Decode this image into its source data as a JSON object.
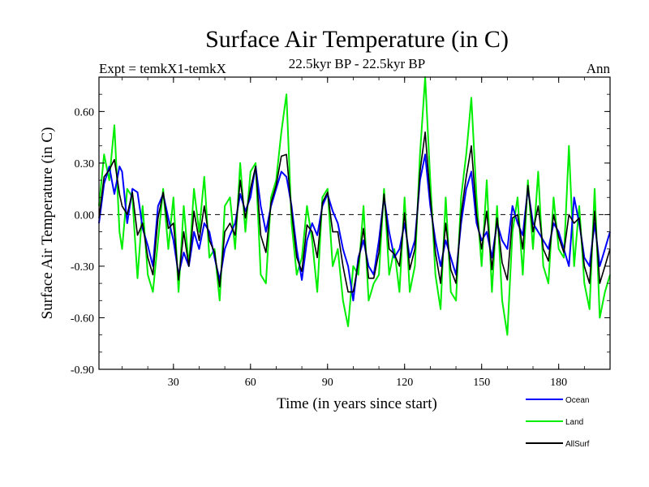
{
  "chart_data": {
    "type": "line",
    "title": "Surface Air Temperature (in C)",
    "subtitle_left": "Expt = temkX1-temkX",
    "subtitle_center": "22.5kyr BP - 22.5kyr BP",
    "subtitle_right": "Ann",
    "xlabel": "Time (in years since start)",
    "ylabel": "Surface Air Temperature (in C)",
    "xlim": [
      1,
      200
    ],
    "ylim": [
      -0.9,
      0.8
    ],
    "xticks": [
      30,
      60,
      90,
      120,
      150,
      180
    ],
    "xtick_labels": [
      "30",
      "60",
      "90",
      "120",
      "150",
      "180"
    ],
    "yticks": [
      -0.9,
      -0.6,
      -0.3,
      0.0,
      0.3,
      0.6
    ],
    "ytick_labels": [
      "-0.90",
      "-0.60",
      "-0.30",
      "0.00",
      "0.30",
      "0.60"
    ],
    "reference_line": 0.0,
    "legend_position": "bottom-right",
    "series": [
      {
        "name": "Ocean",
        "color": "#0000ff",
        "values": []
      },
      {
        "name": "Land",
        "color": "#00ee00",
        "values": []
      },
      {
        "name": "AllSurf",
        "color": "#000000",
        "values": []
      }
    ]
  }
}
